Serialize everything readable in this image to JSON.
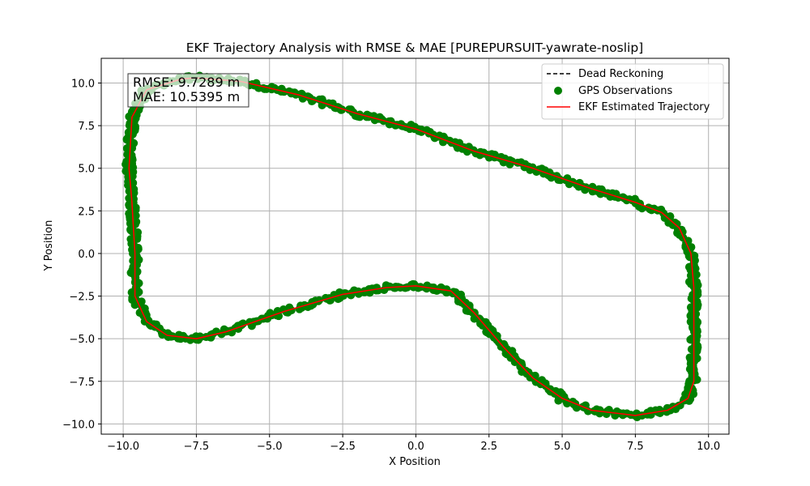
{
  "chart_data": {
    "type": "scatter",
    "title": "EKF Trajectory Analysis with RMSE & MAE [PUREPURSUIT-yawrate-noslip]",
    "xlabel": "X Position",
    "ylabel": "Y Position",
    "xlim": [
      -10.75,
      10.7
    ],
    "ylim": [
      -10.6,
      11.45
    ],
    "xticks": [
      -10.0,
      -7.5,
      -5.0,
      -2.5,
      0.0,
      2.5,
      5.0,
      7.5,
      10.0
    ],
    "yticks": [
      -10.0,
      -7.5,
      -5.0,
      -2.5,
      0.0,
      2.5,
      5.0,
      7.5,
      10.0
    ],
    "xtick_labels": [
      "−10.0",
      "−7.5",
      "−5.0",
      "−2.5",
      "0.0",
      "2.5",
      "5.0",
      "7.5",
      "10.0"
    ],
    "ytick_labels": [
      "−10.0",
      "−7.5",
      "−5.0",
      "−2.5",
      "0.0",
      "2.5",
      "5.0",
      "7.5",
      "10.0"
    ],
    "grid": true,
    "legend_position": "top-right",
    "stats": [
      "RMSE: 9.7289 m",
      "MAE: 10.5395 m"
    ],
    "series": [
      {
        "name": "Dead Reckoning",
        "style": "dashed-line",
        "color": "#000000",
        "points": []
      },
      {
        "name": "GPS Observations",
        "style": "scatter",
        "color": "#008000",
        "points": []
      },
      {
        "name": "EKF Estimated Trajectory",
        "style": "line",
        "color": "#ff0000",
        "points": [
          [
            -7.5,
            10.3
          ],
          [
            -6.0,
            10.1
          ],
          [
            -4.0,
            9.3
          ],
          [
            -2.0,
            8.2
          ],
          [
            0.0,
            7.3
          ],
          [
            2.0,
            6.0
          ],
          [
            4.0,
            5.0
          ],
          [
            6.0,
            3.8
          ],
          [
            7.5,
            3.0
          ],
          [
            8.4,
            2.4
          ],
          [
            9.0,
            1.5
          ],
          [
            9.4,
            0.0
          ],
          [
            9.5,
            -2.0
          ],
          [
            9.5,
            -4.5
          ],
          [
            9.5,
            -7.5
          ],
          [
            9.3,
            -8.5
          ],
          [
            8.6,
            -9.2
          ],
          [
            7.5,
            -9.5
          ],
          [
            6.0,
            -9.2
          ],
          [
            5.0,
            -8.5
          ],
          [
            4.0,
            -7.3
          ],
          [
            3.0,
            -5.5
          ],
          [
            2.0,
            -3.5
          ],
          [
            1.2,
            -2.2
          ],
          [
            0.0,
            -1.9
          ],
          [
            -1.0,
            -2.0
          ],
          [
            -2.5,
            -2.4
          ],
          [
            -3.5,
            -2.9
          ],
          [
            -4.5,
            -3.4
          ],
          [
            -5.5,
            -4.0
          ],
          [
            -6.5,
            -4.6
          ],
          [
            -7.5,
            -5.0
          ],
          [
            -8.5,
            -4.8
          ],
          [
            -9.2,
            -4.0
          ],
          [
            -9.6,
            -2.5
          ],
          [
            -9.6,
            0.0
          ],
          [
            -9.7,
            3.0
          ],
          [
            -9.8,
            5.0
          ],
          [
            -9.7,
            8.0
          ],
          [
            -9.2,
            9.6
          ],
          [
            -8.0,
            10.25
          ],
          [
            -7.5,
            10.3
          ]
        ]
      }
    ]
  }
}
